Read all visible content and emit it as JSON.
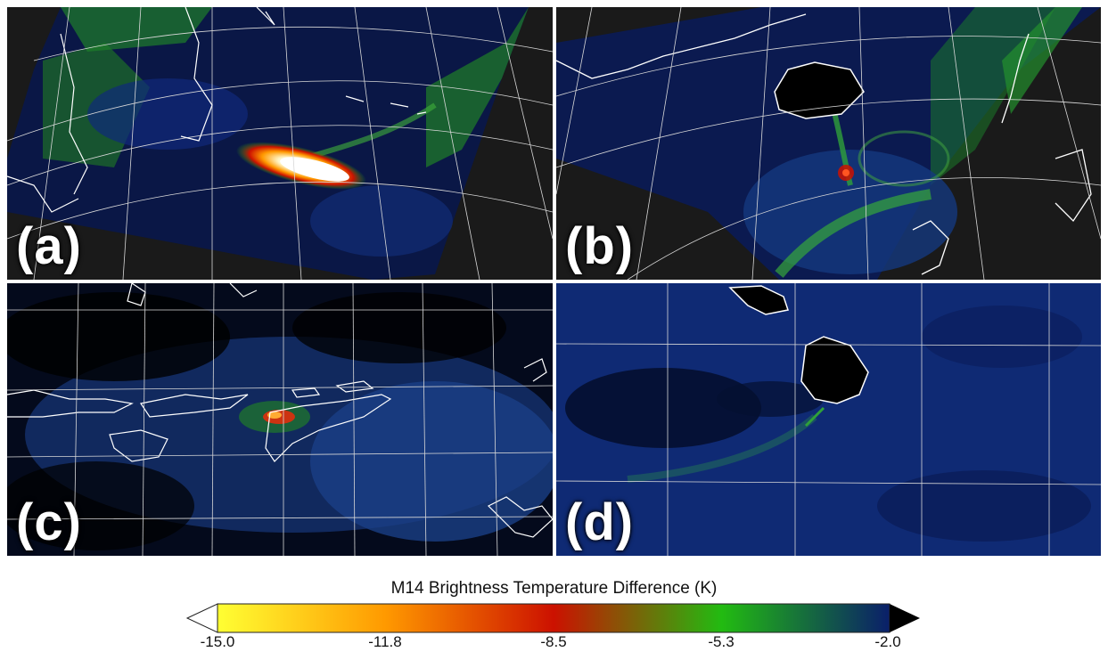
{
  "panels": [
    {
      "label": "(a)"
    },
    {
      "label": "(b)"
    },
    {
      "label": "(c)"
    },
    {
      "label": "(d)"
    }
  ],
  "colorbar": {
    "title": "M14 Brightness Temperature Difference (K)",
    "ticks": [
      "-15.0",
      "-11.8",
      "-8.5",
      "-5.3",
      "-2.0"
    ],
    "range": [
      -15.0,
      -2.0
    ],
    "colors": [
      "#ffff33",
      "#ff9900",
      "#cc1100",
      "#22bb11",
      "#0a1f6a"
    ]
  }
}
